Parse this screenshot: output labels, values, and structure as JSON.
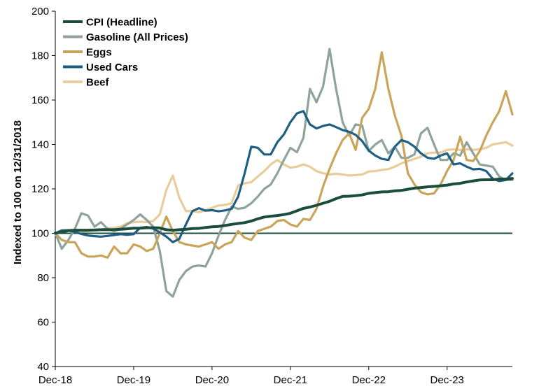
{
  "chart_data": {
    "type": "line",
    "title": "",
    "xlabel": "",
    "ylabel": "Indexed to 100 on 12/31/2018",
    "ylim": [
      40,
      200
    ],
    "yticks": [
      "40",
      "60",
      "80",
      "100",
      "120",
      "140",
      "160",
      "180",
      "200"
    ],
    "xticks": [
      "Dec-18",
      "Dec-19",
      "Dec-20",
      "Dec-21",
      "Dec-22",
      "Dec-23"
    ],
    "x_start": "Dec-18",
    "x_end": "Jul-24",
    "grid": false,
    "legend_position": "top-left",
    "reference_line": {
      "value": 100,
      "color": "#1b4d3e"
    },
    "series": [
      {
        "name": "CPI (Headline)",
        "color": "#1b4d3e",
        "values": [
          100,
          100.6,
          101.2,
          101.4,
          101.4,
          101.4,
          101.5,
          101.6,
          101.6,
          101.6,
          101.8,
          102,
          102.3,
          102.3,
          102.5,
          102.5,
          102.4,
          101.6,
          101.4,
          101.6,
          101.8,
          102.1,
          102.2,
          102.6,
          102.9,
          103.1,
          103.5,
          104,
          104.4,
          104.8,
          105.5,
          106.5,
          107.3,
          107.7,
          108,
          108.4,
          109,
          110.1,
          111.2,
          111.8,
          112.6,
          113.5,
          114.4,
          115.6,
          116.6,
          116.7,
          116.9,
          117.3,
          118,
          118.3,
          118.6,
          118.7,
          119.1,
          119.3,
          119.8,
          120.3,
          120.6,
          120.9,
          121.1,
          121.4,
          121.7,
          122.2,
          122.5,
          123.1,
          123.6,
          124,
          124.1,
          124.1,
          124.4,
          124.4,
          124.7
        ]
      },
      {
        "name": "Gasoline (All Prices)",
        "color": "#8ea39a",
        "values": [
          100,
          93,
          97,
          102,
          109,
          108,
          103,
          105,
          102,
          101,
          102,
          104,
          106,
          108.5,
          106,
          103,
          92,
          74,
          71.5,
          79,
          83,
          85,
          85.5,
          85,
          91,
          99,
          106,
          112,
          111,
          111.5,
          113.5,
          116.5,
          120,
          122,
          127,
          133,
          138.5,
          136.5,
          143,
          165,
          159,
          166,
          183,
          165,
          150,
          144,
          149,
          148.5,
          137,
          140,
          142,
          136,
          139,
          134,
          134,
          135.5,
          145,
          147.5,
          140,
          133,
          133,
          136,
          135,
          141,
          136,
          131,
          130.5,
          130,
          125.5,
          124,
          124
        ]
      },
      {
        "name": "Eggs",
        "color": "#c9a55a",
        "values": [
          100,
          97,
          96,
          96,
          91,
          89.5,
          89.5,
          90,
          89,
          94,
          91,
          91,
          95,
          94,
          92,
          93,
          100,
          107.5,
          101,
          96,
          95,
          94.5,
          94,
          95,
          96,
          93,
          95,
          96,
          101,
          98,
          97,
          101,
          102,
          103,
          105.5,
          106,
          104,
          103,
          106.5,
          106,
          111,
          121,
          129,
          136,
          142,
          145,
          137.5,
          152,
          156,
          165,
          181.5,
          165,
          153,
          144,
          127,
          122,
          118.5,
          117.5,
          118,
          122,
          128,
          133,
          143.5,
          133,
          132.5,
          137,
          144,
          150,
          155,
          164,
          153.5
        ]
      },
      {
        "name": "Used Cars",
        "color": "#1f5f85",
        "values": [
          100,
          101.3,
          101.3,
          100.6,
          99.7,
          99,
          98.7,
          98.5,
          98.8,
          99.2,
          99.6,
          99.3,
          99.6,
          102.5,
          102.8,
          102.1,
          100.4,
          98.5,
          96,
          97.5,
          104,
          110,
          111.3,
          110.2,
          110.4,
          109.9,
          110.3,
          111,
          116.5,
          127,
          139,
          138.5,
          135.5,
          135.5,
          141,
          144.5,
          150,
          154,
          155,
          149,
          147.2,
          148.3,
          149,
          147.8,
          146.5,
          145.7,
          144.3,
          141.5,
          137.2,
          135,
          133.5,
          133,
          139,
          142,
          141,
          139,
          136,
          134,
          133.5,
          135,
          136,
          131,
          131.5,
          130,
          128.8,
          129,
          128,
          124.5,
          123.5,
          124,
          127
        ]
      },
      {
        "name": "Beef",
        "color": "#e8cc9a",
        "values": [
          100,
          101.2,
          101.5,
          101.3,
          100.8,
          101,
          101.2,
          101.6,
          102.3,
          102.4,
          103,
          104.5,
          105,
          105.2,
          105,
          105.5,
          108.5,
          119.5,
          126,
          116,
          110,
          110,
          109.5,
          110.3,
          111.5,
          112.5,
          112.8,
          113.5,
          121.5,
          122.5,
          123,
          125.5,
          128,
          131,
          133,
          131,
          129.5,
          130,
          131,
          130,
          128,
          127,
          126.5,
          126.8,
          126.5,
          126,
          126.2,
          126.5,
          127.8,
          128,
          128.5,
          128.9,
          130,
          131.5,
          132.5,
          133.5,
          134.5,
          136,
          136.3,
          136.3,
          137.5,
          137.8,
          137.5,
          137.8,
          137.6,
          137.8,
          138.5,
          140,
          140.5,
          141,
          139.5
        ]
      }
    ]
  }
}
